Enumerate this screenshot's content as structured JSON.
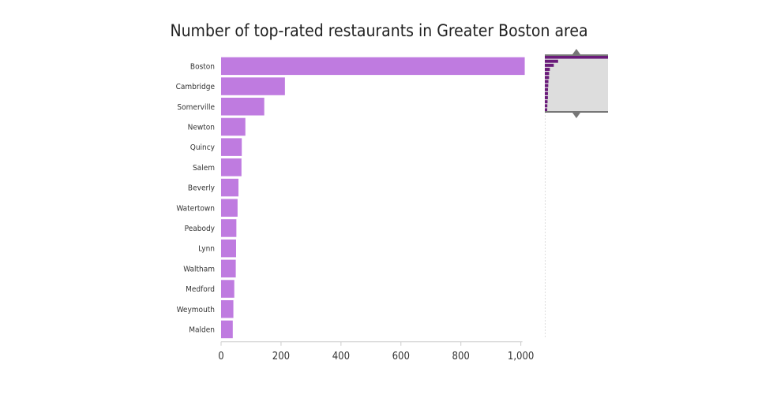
{
  "chart_data": {
    "type": "bar",
    "orientation": "horizontal",
    "title": "Number of top-rated restaurants in Greater Boston area",
    "xlabel": "",
    "ylabel": "",
    "categories": [
      "Boston",
      "Cambridge",
      "Somerville",
      "Newton",
      "Quincy",
      "Salem",
      "Beverly",
      "Watertown",
      "Peabody",
      "Lynn",
      "Waltham",
      "Medford",
      "Weymouth",
      "Malden"
    ],
    "values": [
      1013,
      213,
      144,
      81,
      69,
      68,
      58,
      55,
      51,
      50,
      49,
      44,
      41,
      39
    ],
    "xlim": [
      0,
      1080
    ],
    "xticks": [
      0,
      200,
      400,
      600,
      800,
      1000
    ],
    "xtick_labels": [
      "0",
      "200",
      "400",
      "600",
      "800",
      "1,000"
    ],
    "grid": false,
    "legend": "none",
    "colors": {
      "bar": "#bf7be0",
      "navigator_bar": "#6a1b7a",
      "navigator_window": "#dddddd",
      "navigator_handle": "#777777"
    },
    "navigator": {
      "visible_fraction": 0.2,
      "total_items": 70
    }
  }
}
